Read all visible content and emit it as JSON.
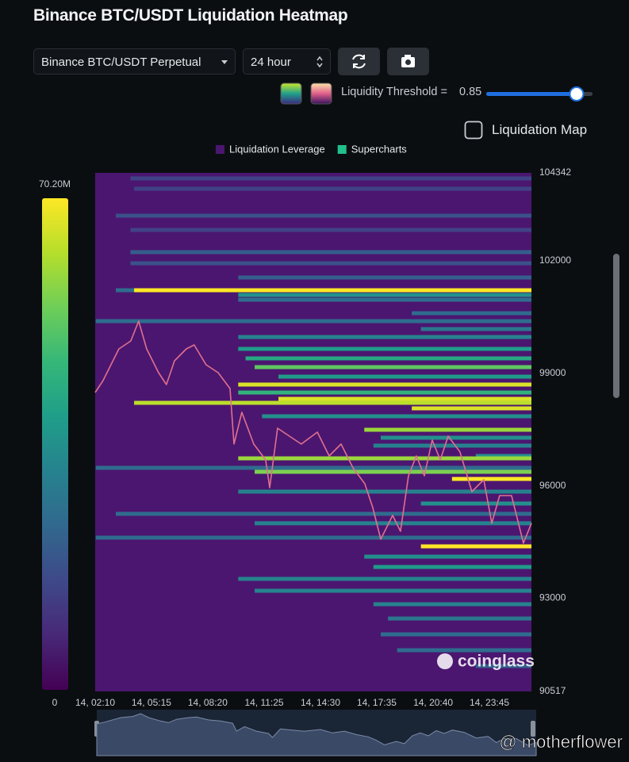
{
  "header": {
    "title": "Binance BTC/USDT Liquidation Heatmap"
  },
  "controls": {
    "pair": "Binance BTC/USDT Perpetual",
    "range": "24 hour",
    "threshold_label": "Liquidity Threshold =",
    "threshold": 0.85,
    "map_toggle": "Liquidation Map"
  },
  "watermark": "coinglass",
  "credit": "@ motherflower",
  "chart_data": {
    "type": "heatmap",
    "series": [
      {
        "name": "Liquidation Leverage",
        "color": "#4b1670"
      },
      {
        "name": "Supercharts",
        "color": "#21c08b"
      }
    ],
    "xlim": [
      2.17,
      26.05
    ],
    "xticks": [
      {
        "value": 2.17,
        "label": "14, 02:10"
      },
      {
        "value": 5.25,
        "label": "14, 05:15"
      },
      {
        "value": 8.33,
        "label": "14, 08:20"
      },
      {
        "value": 11.42,
        "label": "14, 11:25"
      },
      {
        "value": 14.5,
        "label": "14, 14:30"
      },
      {
        "value": 17.58,
        "label": "14, 17:35"
      },
      {
        "value": 20.67,
        "label": "14, 20:40"
      },
      {
        "value": 23.75,
        "label": "14, 23:45"
      }
    ],
    "ylim": [
      90517,
      104342
    ],
    "yticks": [
      90517,
      93000,
      96000,
      99000,
      102000,
      104342
    ],
    "zlim": [
      0,
      70.2
    ],
    "zticks": [
      0,
      {
        "value": 70.2,
        "label": "70.20M"
      }
    ],
    "bands": [
      {
        "price": 104194,
        "x": 4.1,
        "value": 14
      },
      {
        "price": 103919,
        "x": 4.3,
        "value": 14
      },
      {
        "price": 103200,
        "x": 3.3,
        "value": 17.5
      },
      {
        "price": 102820,
        "x": 4.1,
        "value": 14
      },
      {
        "price": 102228,
        "x": 4.1,
        "value": 21
      },
      {
        "price": 101932,
        "x": 4.1,
        "value": 17.5
      },
      {
        "price": 101552,
        "x": 10.0,
        "value": 21
      },
      {
        "price": 101213,
        "x": 3.3,
        "value": 24.5
      },
      {
        "price": 101213,
        "x": 4.3,
        "value": 70.2
      },
      {
        "price": 101087,
        "x": 10.0,
        "value": 35
      },
      {
        "price": 100960,
        "x": 10.0,
        "value": 24.5
      },
      {
        "price": 100600,
        "x": 19.5,
        "value": 24.5
      },
      {
        "price": 100389,
        "x": 2.2,
        "value": 24.5
      },
      {
        "price": 100178,
        "x": 20.0,
        "value": 28
      },
      {
        "price": 99966,
        "x": 10.0,
        "value": 31.5
      },
      {
        "price": 99649,
        "x": 10.0,
        "value": 38.5
      },
      {
        "price": 99396,
        "x": 10.4,
        "value": 42
      },
      {
        "price": 99163,
        "x": 10.9,
        "value": 52.5
      },
      {
        "price": 98909,
        "x": 12.2,
        "value": 38.5
      },
      {
        "price": 98698,
        "x": 10.0,
        "value": 66.5
      },
      {
        "price": 98486,
        "x": 10.0,
        "value": 45.5
      },
      {
        "price": 98317,
        "x": 12.2,
        "value": 66.5
      },
      {
        "price": 98211,
        "x": 4.3,
        "value": 63
      },
      {
        "price": 98064,
        "x": 19.5,
        "value": 66.5
      },
      {
        "price": 97853,
        "x": 11.3,
        "value": 35
      },
      {
        "price": 97493,
        "x": 16.9,
        "value": 59.5
      },
      {
        "price": 97281,
        "x": 17.8,
        "value": 35
      },
      {
        "price": 97070,
        "x": 17.4,
        "value": 31.5
      },
      {
        "price": 96795,
        "x": 23.0,
        "value": 35
      },
      {
        "price": 96731,
        "x": 10.0,
        "value": 59.5
      },
      {
        "price": 96478,
        "x": 2.2,
        "value": 24.5
      },
      {
        "price": 96372,
        "x": 10.9,
        "value": 56
      },
      {
        "price": 96182,
        "x": 21.7,
        "value": 70.2
      },
      {
        "price": 95844,
        "x": 10.0,
        "value": 31.5
      },
      {
        "price": 95527,
        "x": 20.0,
        "value": 35
      },
      {
        "price": 95252,
        "x": 3.3,
        "value": 24.5
      },
      {
        "price": 95000,
        "x": 10.9,
        "value": 31.5
      },
      {
        "price": 94617,
        "x": 2.2,
        "value": 24.5
      },
      {
        "price": 94385,
        "x": 20.0,
        "value": 70.2
      },
      {
        "price": 94110,
        "x": 16.9,
        "value": 35
      },
      {
        "price": 93835,
        "x": 17.4,
        "value": 38.5
      },
      {
        "price": 93518,
        "x": 10.0,
        "value": 31.5
      },
      {
        "price": 93201,
        "x": 10.9,
        "value": 31.5
      },
      {
        "price": 92842,
        "x": 17.4,
        "value": 31.5
      },
      {
        "price": 92461,
        "x": 18.2,
        "value": 28
      },
      {
        "price": 92039,
        "x": 17.8,
        "value": 24.5
      },
      {
        "price": 91616,
        "x": 18.7,
        "value": 24.5
      },
      {
        "price": 91193,
        "x": 23.0,
        "value": 21
      }
    ],
    "price": {
      "color": "#e0708f",
      "x": [
        2.17,
        2.6,
        3.47,
        4.12,
        4.55,
        4.99,
        5.64,
        6.07,
        6.51,
        7.16,
        7.59,
        8.24,
        8.9,
        9.55,
        9.77,
        10.2,
        10.85,
        11.5,
        11.72,
        12.15,
        12.8,
        13.45,
        14.33,
        14.98,
        15.63,
        16.28,
        16.93,
        17.36,
        17.8,
        18.45,
        18.88,
        19.32,
        19.75,
        20.19,
        20.62,
        21.06,
        21.49,
        22.14,
        22.79,
        23.44,
        23.88,
        24.31,
        24.96,
        25.61,
        26.05
      ],
      "y": [
        98486,
        98803,
        99649,
        99860,
        100389,
        99649,
        99015,
        98698,
        99332,
        99649,
        99755,
        99226,
        99015,
        98592,
        97112,
        97958,
        97112,
        96690,
        95950,
        97535,
        97323,
        97112,
        97429,
        96795,
        97112,
        96478,
        96055,
        95421,
        94576,
        95210,
        94787,
        96266,
        96795,
        96266,
        97218,
        96690,
        97323,
        96901,
        95844,
        96161,
        95000,
        95738,
        95738,
        94470,
        95000
      ]
    }
  }
}
